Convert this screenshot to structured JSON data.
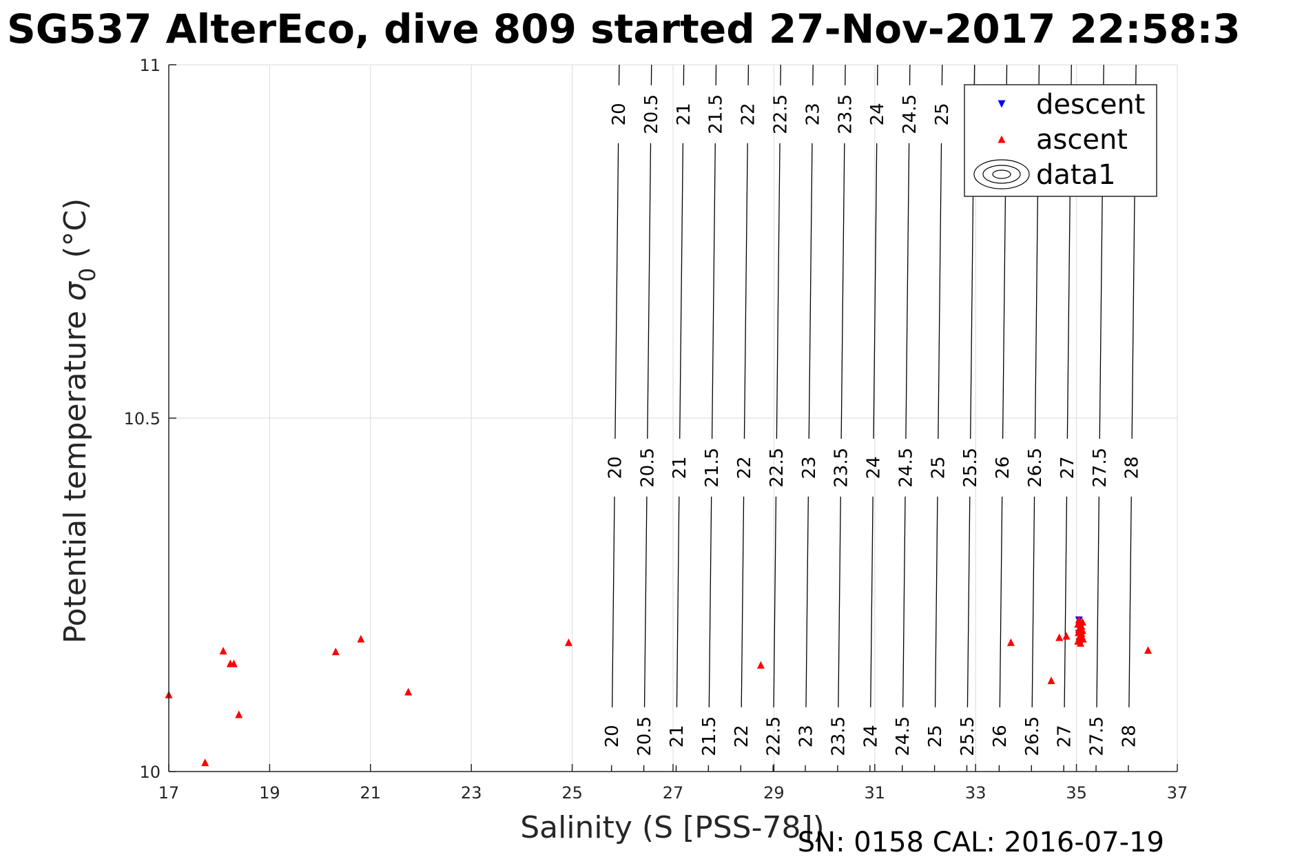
{
  "chart_data": {
    "type": "scatter",
    "title": "SG537 AlterEco, dive 809 started 27-Nov-2017 22:58:3",
    "xlabel": "Salinity (S [PSS-78])",
    "ylabel_main": "Potential temperature ",
    "ylabel_symbol": "σ",
    "ylabel_sub": "0",
    "ylabel_unit": " (°C)",
    "xlim": [
      17,
      37
    ],
    "ylim": [
      10,
      11
    ],
    "x_ticks": [
      "17",
      "19",
      "21",
      "23",
      "25",
      "27",
      "29",
      "31",
      "33",
      "35",
      "37"
    ],
    "y_ticks": [
      "10",
      "10.5",
      "11"
    ],
    "grid": true,
    "legend_position": "top-right",
    "legend": [
      {
        "label": "descent",
        "marker": "triangle-down",
        "color": "#0000ff"
      },
      {
        "label": "ascent",
        "marker": "triangle-up",
        "color": "#ff0000"
      },
      {
        "label": "data1",
        "marker": "contour"
      }
    ],
    "series": [
      {
        "name": "descent",
        "marker": "triangle-down",
        "color": "#0000ff",
        "x": [
          35.05,
          35.06,
          35.07,
          35.05,
          35.08,
          35.06
        ],
        "y": [
          10.214,
          10.207,
          10.201,
          10.195,
          10.189,
          10.183
        ]
      },
      {
        "name": "ascent",
        "marker": "triangle-up",
        "color": "#ff0000",
        "x": [
          17.0,
          17.72,
          18.08,
          18.22,
          18.29,
          18.39,
          20.31,
          20.81,
          21.75,
          24.93,
          28.74,
          33.7,
          34.5,
          34.66,
          34.8,
          35.05,
          35.12,
          35.03,
          35.1,
          35.06,
          35.12,
          35.04,
          35.09,
          35.06,
          35.13,
          35.03,
          35.08,
          35.05,
          35.11,
          35.06,
          35.1,
          36.42
        ],
        "y": [
          10.109,
          10.013,
          10.171,
          10.153,
          10.153,
          10.081,
          10.17,
          10.188,
          10.113,
          10.183,
          10.151,
          10.183,
          10.129,
          10.19,
          10.192,
          10.215,
          10.212,
          10.209,
          10.206,
          10.203,
          10.2,
          10.197,
          10.194,
          10.191,
          10.188,
          10.185,
          10.182,
          10.201,
          10.191,
          10.187,
          10.196,
          10.172
        ]
      }
    ],
    "contour_levels": [
      20,
      20.5,
      21,
      21.5,
      22,
      22.5,
      23,
      23.5,
      24,
      24.5,
      25,
      25.5,
      26,
      26.5,
      27,
      27.5,
      28
    ],
    "contour_level_labels": [
      "20",
      "20.5",
      "21",
      "21.5",
      "22",
      "22.5",
      "23",
      "23.5",
      "24",
      "24.5",
      "25",
      "25.5",
      "26",
      "26.5",
      "27",
      "27.5",
      "28"
    ],
    "contour_series_name": "data1",
    "footer": "SN: 0158  CAL: 2016-07-19"
  }
}
